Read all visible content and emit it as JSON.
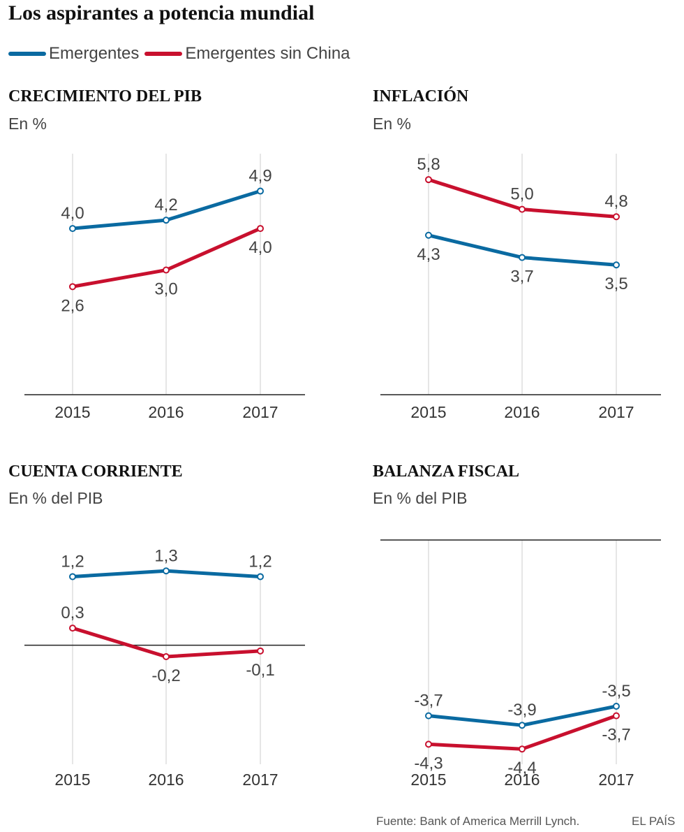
{
  "title": "Los aspirantes a potencia mundial",
  "legend": [
    {
      "label": "Emergentes",
      "color": "#0a6aa1"
    },
    {
      "label": "Emergentes sin China",
      "color": "#c8102e"
    }
  ],
  "chart_data": [
    {
      "type": "line",
      "title": "CRECIMIENTO DEL PIB",
      "subtitle": "En %",
      "categories": [
        "2015",
        "2016",
        "2017"
      ],
      "series": [
        {
          "name": "Emergentes",
          "values": [
            4.0,
            4.2,
            4.9
          ],
          "labels": [
            "4,0",
            "4,2",
            "4,9"
          ],
          "label_positions": [
            "above",
            "above",
            "above"
          ]
        },
        {
          "name": "Emergentes sin China",
          "values": [
            2.6,
            3.0,
            4.0
          ],
          "labels": [
            "2,6",
            "3,0",
            "4,0"
          ],
          "label_positions": [
            "below",
            "below",
            "below"
          ]
        }
      ],
      "ylim": [
        0,
        5.8
      ],
      "grid": false
    },
    {
      "type": "line",
      "title": "INFLACIÓN",
      "subtitle": "En %",
      "categories": [
        "2015",
        "2016",
        "2017"
      ],
      "series": [
        {
          "name": "Emergentes",
          "values": [
            4.3,
            3.7,
            3.5
          ],
          "labels": [
            "4,3",
            "3,7",
            "3,5"
          ],
          "label_positions": [
            "below",
            "below",
            "below"
          ]
        },
        {
          "name": "Emergentes sin China",
          "values": [
            5.8,
            5.0,
            4.8
          ],
          "labels": [
            "5,8",
            "5,0",
            "4,8"
          ],
          "label_positions": [
            "above",
            "above",
            "above"
          ]
        }
      ],
      "ylim": [
        0,
        6.5
      ],
      "grid": false
    },
    {
      "type": "line",
      "title": "CUENTA CORRIENTE",
      "subtitle": "En % del PIB",
      "categories": [
        "2015",
        "2016",
        "2017"
      ],
      "series": [
        {
          "name": "Emergentes",
          "values": [
            1.2,
            1.3,
            1.2
          ],
          "labels": [
            "1,2",
            "1,3",
            "1,2"
          ],
          "label_positions": [
            "above",
            "above",
            "above"
          ]
        },
        {
          "name": "Emergentes sin China",
          "values": [
            0.3,
            -0.2,
            -0.1
          ],
          "labels": [
            "0,3",
            "-0,2",
            "-0,1"
          ],
          "label_positions": [
            "above",
            "below",
            "below"
          ]
        }
      ],
      "ylim": [
        -2.4,
        2.0
      ],
      "zero_line": true,
      "grid": false
    },
    {
      "type": "line",
      "title": "BALANZA FISCAL",
      "subtitle": "En % del PIB",
      "categories": [
        "2015",
        "2016",
        "2017"
      ],
      "series": [
        {
          "name": "Emergentes",
          "values": [
            -3.7,
            -3.9,
            -3.5
          ],
          "labels": [
            "-3,7",
            "-3,9",
            "-3,5"
          ],
          "label_positions": [
            "above",
            "above",
            "above"
          ]
        },
        {
          "name": "Emergentes sin China",
          "values": [
            -4.3,
            -4.4,
            -3.7
          ],
          "labels": [
            "-4,3",
            "-4,4",
            "-3,7"
          ],
          "label_positions": [
            "below",
            "below",
            "below"
          ]
        }
      ],
      "ylim": [
        -5.0,
        0
      ],
      "zero_line": true,
      "grid": false
    }
  ],
  "footer": {
    "source": "Fuente: Bank of America Merrill Lynch.",
    "brand": "EL PAÍS"
  }
}
